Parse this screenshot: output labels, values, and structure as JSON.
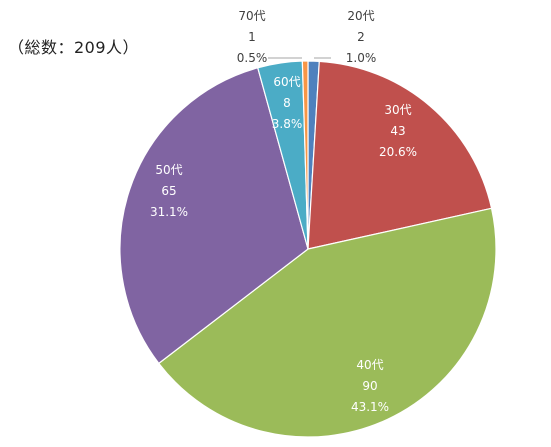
{
  "header": {
    "total_label": "（総数：209人）"
  },
  "chart_data": {
    "type": "pie",
    "title": "",
    "total": 209,
    "slices": [
      {
        "label": "20代",
        "value": 2,
        "percent": "1.0%",
        "color": "#4f81bd"
      },
      {
        "label": "30代",
        "value": 43,
        "percent": "20.6%",
        "color": "#c0504d"
      },
      {
        "label": "40代",
        "value": 90,
        "percent": "43.1%",
        "color": "#9bbb59"
      },
      {
        "label": "50代",
        "value": 65,
        "percent": "31.1%",
        "color": "#8064a2"
      },
      {
        "label": "60代",
        "value": 8,
        "percent": "3.8%",
        "color": "#4bacc6"
      },
      {
        "label": "70代",
        "value": 1,
        "percent": "0.5%",
        "color": "#f79646"
      }
    ],
    "start_angle_deg": 0,
    "direction": "clockwise",
    "label_colors": {
      "inside": "#ffffff",
      "outside": "#404040"
    }
  }
}
